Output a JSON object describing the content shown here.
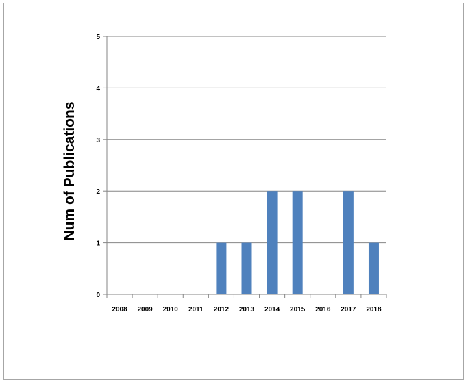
{
  "chart_data": {
    "type": "bar",
    "categories": [
      "2008",
      "2009",
      "2010",
      "2011",
      "2012",
      "2013",
      "2014",
      "2015",
      "2016",
      "2017",
      "2018"
    ],
    "values": [
      0,
      0,
      0,
      0,
      1,
      1,
      2,
      2,
      0,
      2,
      1
    ],
    "title": "",
    "xlabel": "",
    "ylabel": "Num of Publications",
    "ylim": [
      0,
      5
    ],
    "yticks": [
      0,
      1,
      2,
      3,
      4,
      5
    ],
    "grid": true,
    "legend": "none",
    "bar_color": "#4f81bd",
    "gridline_color": "#868686"
  }
}
